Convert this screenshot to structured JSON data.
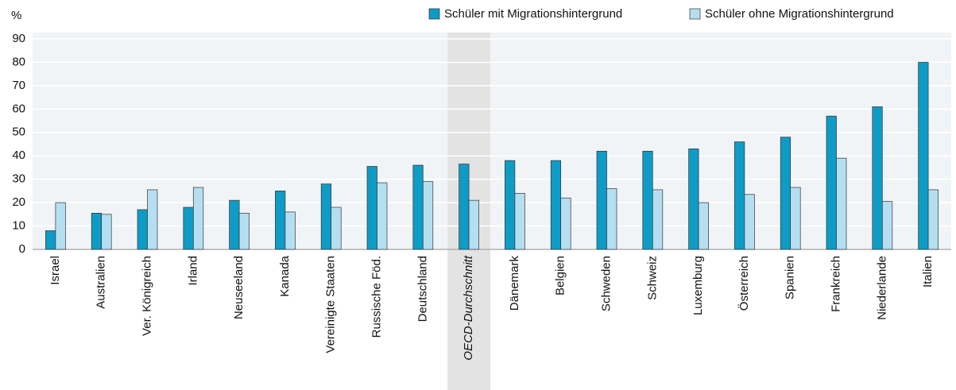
{
  "chart_data": {
    "type": "bar",
    "y_unit": "%",
    "categories": [
      "Israel",
      "Australien",
      "Ver. Königreich",
      "Irland",
      "Neuseeland",
      "Kanada",
      "Vereinigte Staaten",
      "Russische Föd.",
      "Deutschland",
      "OECD-Durchschnitt",
      "Dänemark",
      "Belgien",
      "Schweden",
      "Schweiz",
      "Luxemburg",
      "Österreich",
      "Spanien",
      "Frankreich",
      "Niederlande",
      "Italien"
    ],
    "highlight_category": 9,
    "series": [
      {
        "name": "Schüler mit Migrationshintergrund",
        "color": "#0e9cc6",
        "values": [
          8,
          15.5,
          17,
          18,
          21,
          25,
          28,
          35.5,
          36,
          36.5,
          38,
          38,
          42,
          42,
          43,
          46,
          48,
          57,
          61,
          80
        ]
      },
      {
        "name": "Schüler ohne Migrationshintergrund",
        "color": "#b5dff1",
        "values": [
          20,
          15,
          25.5,
          26.5,
          15.5,
          16,
          18,
          28.5,
          29,
          21,
          24,
          22,
          26,
          25.5,
          20,
          23.5,
          26.5,
          39,
          20.5,
          25.5
        ]
      }
    ],
    "ylim": [
      0,
      90
    ],
    "yticks": [
      0,
      10,
      20,
      30,
      40,
      50,
      60,
      70,
      80,
      90
    ],
    "grid": true
  }
}
